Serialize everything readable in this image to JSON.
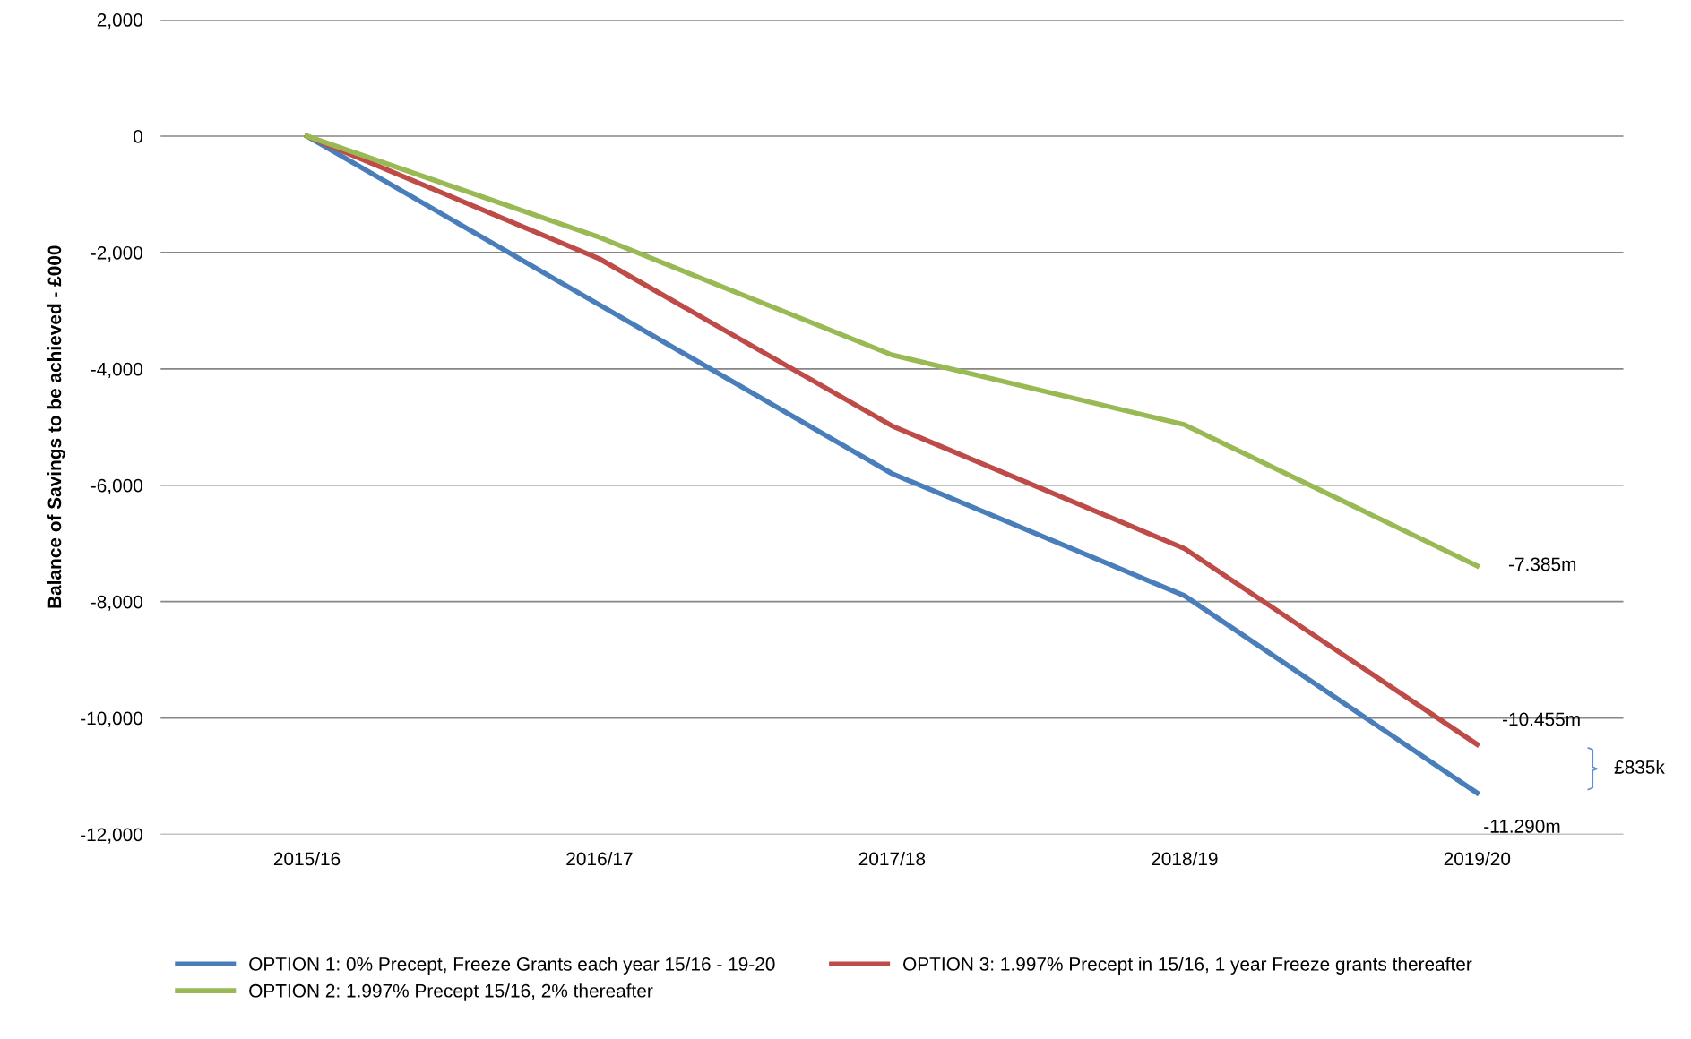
{
  "chart_data": {
    "type": "line",
    "ylabel": "Balance of Savings to be achieved - £000",
    "categories": [
      "2015/16",
      "2016/17",
      "2017/18",
      "2018/19",
      "2019/20"
    ],
    "series": [
      {
        "name": "OPTION 1: 0% Precept, Freeze Grants each year 15/16 - 19-20",
        "color": "#4a7ebb",
        "values": [
          0,
          -2900,
          -5800,
          -7900,
          -11290
        ]
      },
      {
        "name": "OPTION 3: 1.997% Precept in 15/16, 1 year Freeze grants thereafter",
        "color": "#be4b48",
        "values": [
          0,
          -2110,
          -4980,
          -7090,
          -10455
        ]
      },
      {
        "name": "OPTION 2: 1.997% Precept 15/16, 2% thereafter",
        "color": "#98b954",
        "values": [
          0,
          -1740,
          -3760,
          -4960,
          -7385
        ]
      }
    ],
    "ylim": [
      -12000,
      2000
    ],
    "yticks": [
      {
        "value": -12000,
        "label": "-12,000"
      },
      {
        "value": -10000,
        "label": "-10,000"
      },
      {
        "value": -8000,
        "label": "-8,000"
      },
      {
        "value": -6000,
        "label": "-6,000"
      },
      {
        "value": -4000,
        "label": "-4,000"
      },
      {
        "value": -2000,
        "label": "-2,000"
      },
      0,
      {
        "value": 2000,
        "label": "2,000"
      }
    ],
    "grid": "y",
    "legend": "bottom",
    "marker": "none",
    "line_style": "solid",
    "annotations": [
      {
        "text": "-7.385m",
        "x": "2019/20",
        "y": -7385
      },
      {
        "text": "-10.455m",
        "x": "2019/20",
        "y": -10455
      },
      {
        "text": "-11.290m",
        "x": "2019/20",
        "y": -11290
      },
      "£835k"
    ]
  }
}
